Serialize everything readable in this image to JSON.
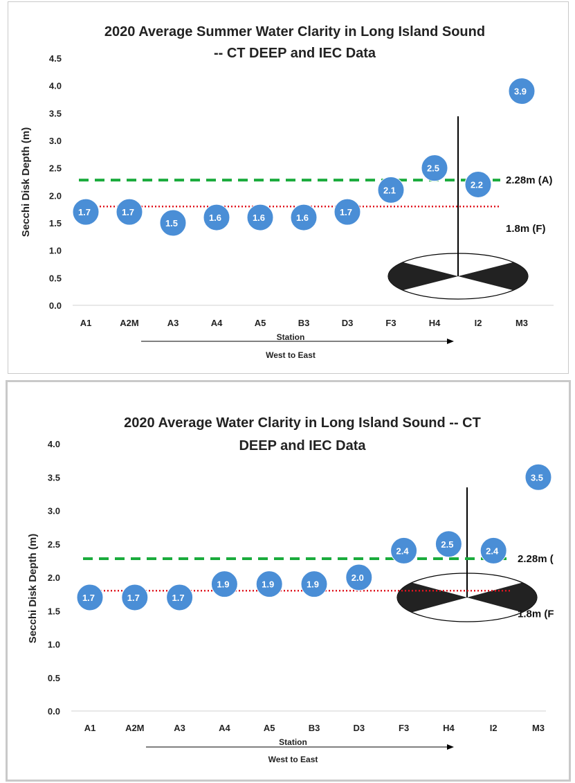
{
  "chart_data": [
    {
      "type": "scatter",
      "title_lines": [
        "2020 Average Summer Water Clarity in Long Island Sound",
        "-- CT DEEP and IEC Data"
      ],
      "xlabel": "Station",
      "direction_label": "West to East",
      "ylabel": "Secchi Disk Depth (m)",
      "ylim": [
        0,
        4.5
      ],
      "ytick_step": 0.5,
      "ytick_labels": [
        "0.0",
        "0.5",
        "1.0",
        "1.5",
        "2.0",
        "2.5",
        "3.0",
        "3.5",
        "4.0",
        "4.5"
      ],
      "categories": [
        "A1",
        "A2M",
        "A3",
        "A4",
        "A5",
        "B3",
        "D3",
        "F3",
        "H4",
        "I2",
        "M3"
      ],
      "values": [
        1.7,
        1.7,
        1.5,
        1.6,
        1.6,
        1.6,
        1.7,
        2.1,
        2.5,
        2.2,
        3.9
      ],
      "data_labels": [
        "1.7",
        "1.7",
        "1.5",
        "1.6",
        "1.6",
        "1.6",
        "1.7",
        "2.1",
        "2.5",
        "2.2",
        "3.9"
      ],
      "reference_lines": [
        {
          "value": 2.28,
          "label": "2.28m (A)",
          "style": "dashed",
          "color": "#1aab3c"
        },
        {
          "value": 1.8,
          "label": "1.8m (F)",
          "style": "dotted",
          "color": "#e0141e"
        }
      ],
      "gridlines": false,
      "legend": "none",
      "marker_color": "#4a8ed6",
      "secchi_disk_icon": true
    },
    {
      "type": "scatter",
      "title_lines": [
        "2020 Average Water Clarity in Long Island Sound -- CT",
        "DEEP and IEC Data"
      ],
      "xlabel": "Station",
      "direction_label": "West to East",
      "ylabel": "Secchi Disk Depth (m)",
      "ylim": [
        0,
        4.0
      ],
      "ytick_step": 0.5,
      "ytick_labels": [
        "0.0",
        "0.5",
        "1.0",
        "1.5",
        "2.0",
        "2.5",
        "3.0",
        "3.5",
        "4.0"
      ],
      "categories": [
        "A1",
        "A2M",
        "A3",
        "A4",
        "A5",
        "B3",
        "D3",
        "F3",
        "H4",
        "I2",
        "M3"
      ],
      "values": [
        1.7,
        1.7,
        1.7,
        1.9,
        1.9,
        1.9,
        2.0,
        2.4,
        2.5,
        2.4,
        3.5
      ],
      "data_labels": [
        "1.7",
        "1.7",
        "1.7",
        "1.9",
        "1.9",
        "1.9",
        "2.0",
        "2.4",
        "2.5",
        "2.4",
        "3.5"
      ],
      "reference_lines": [
        {
          "value": 2.28,
          "label": "2.28m (",
          "style": "dashed",
          "color": "#1aab3c"
        },
        {
          "value": 1.8,
          "label": "1.8m (F",
          "style": "dotted",
          "color": "#e0141e"
        }
      ],
      "gridlines": false,
      "legend": "none",
      "marker_color": "#4a8ed6",
      "secchi_disk_icon": true
    }
  ]
}
